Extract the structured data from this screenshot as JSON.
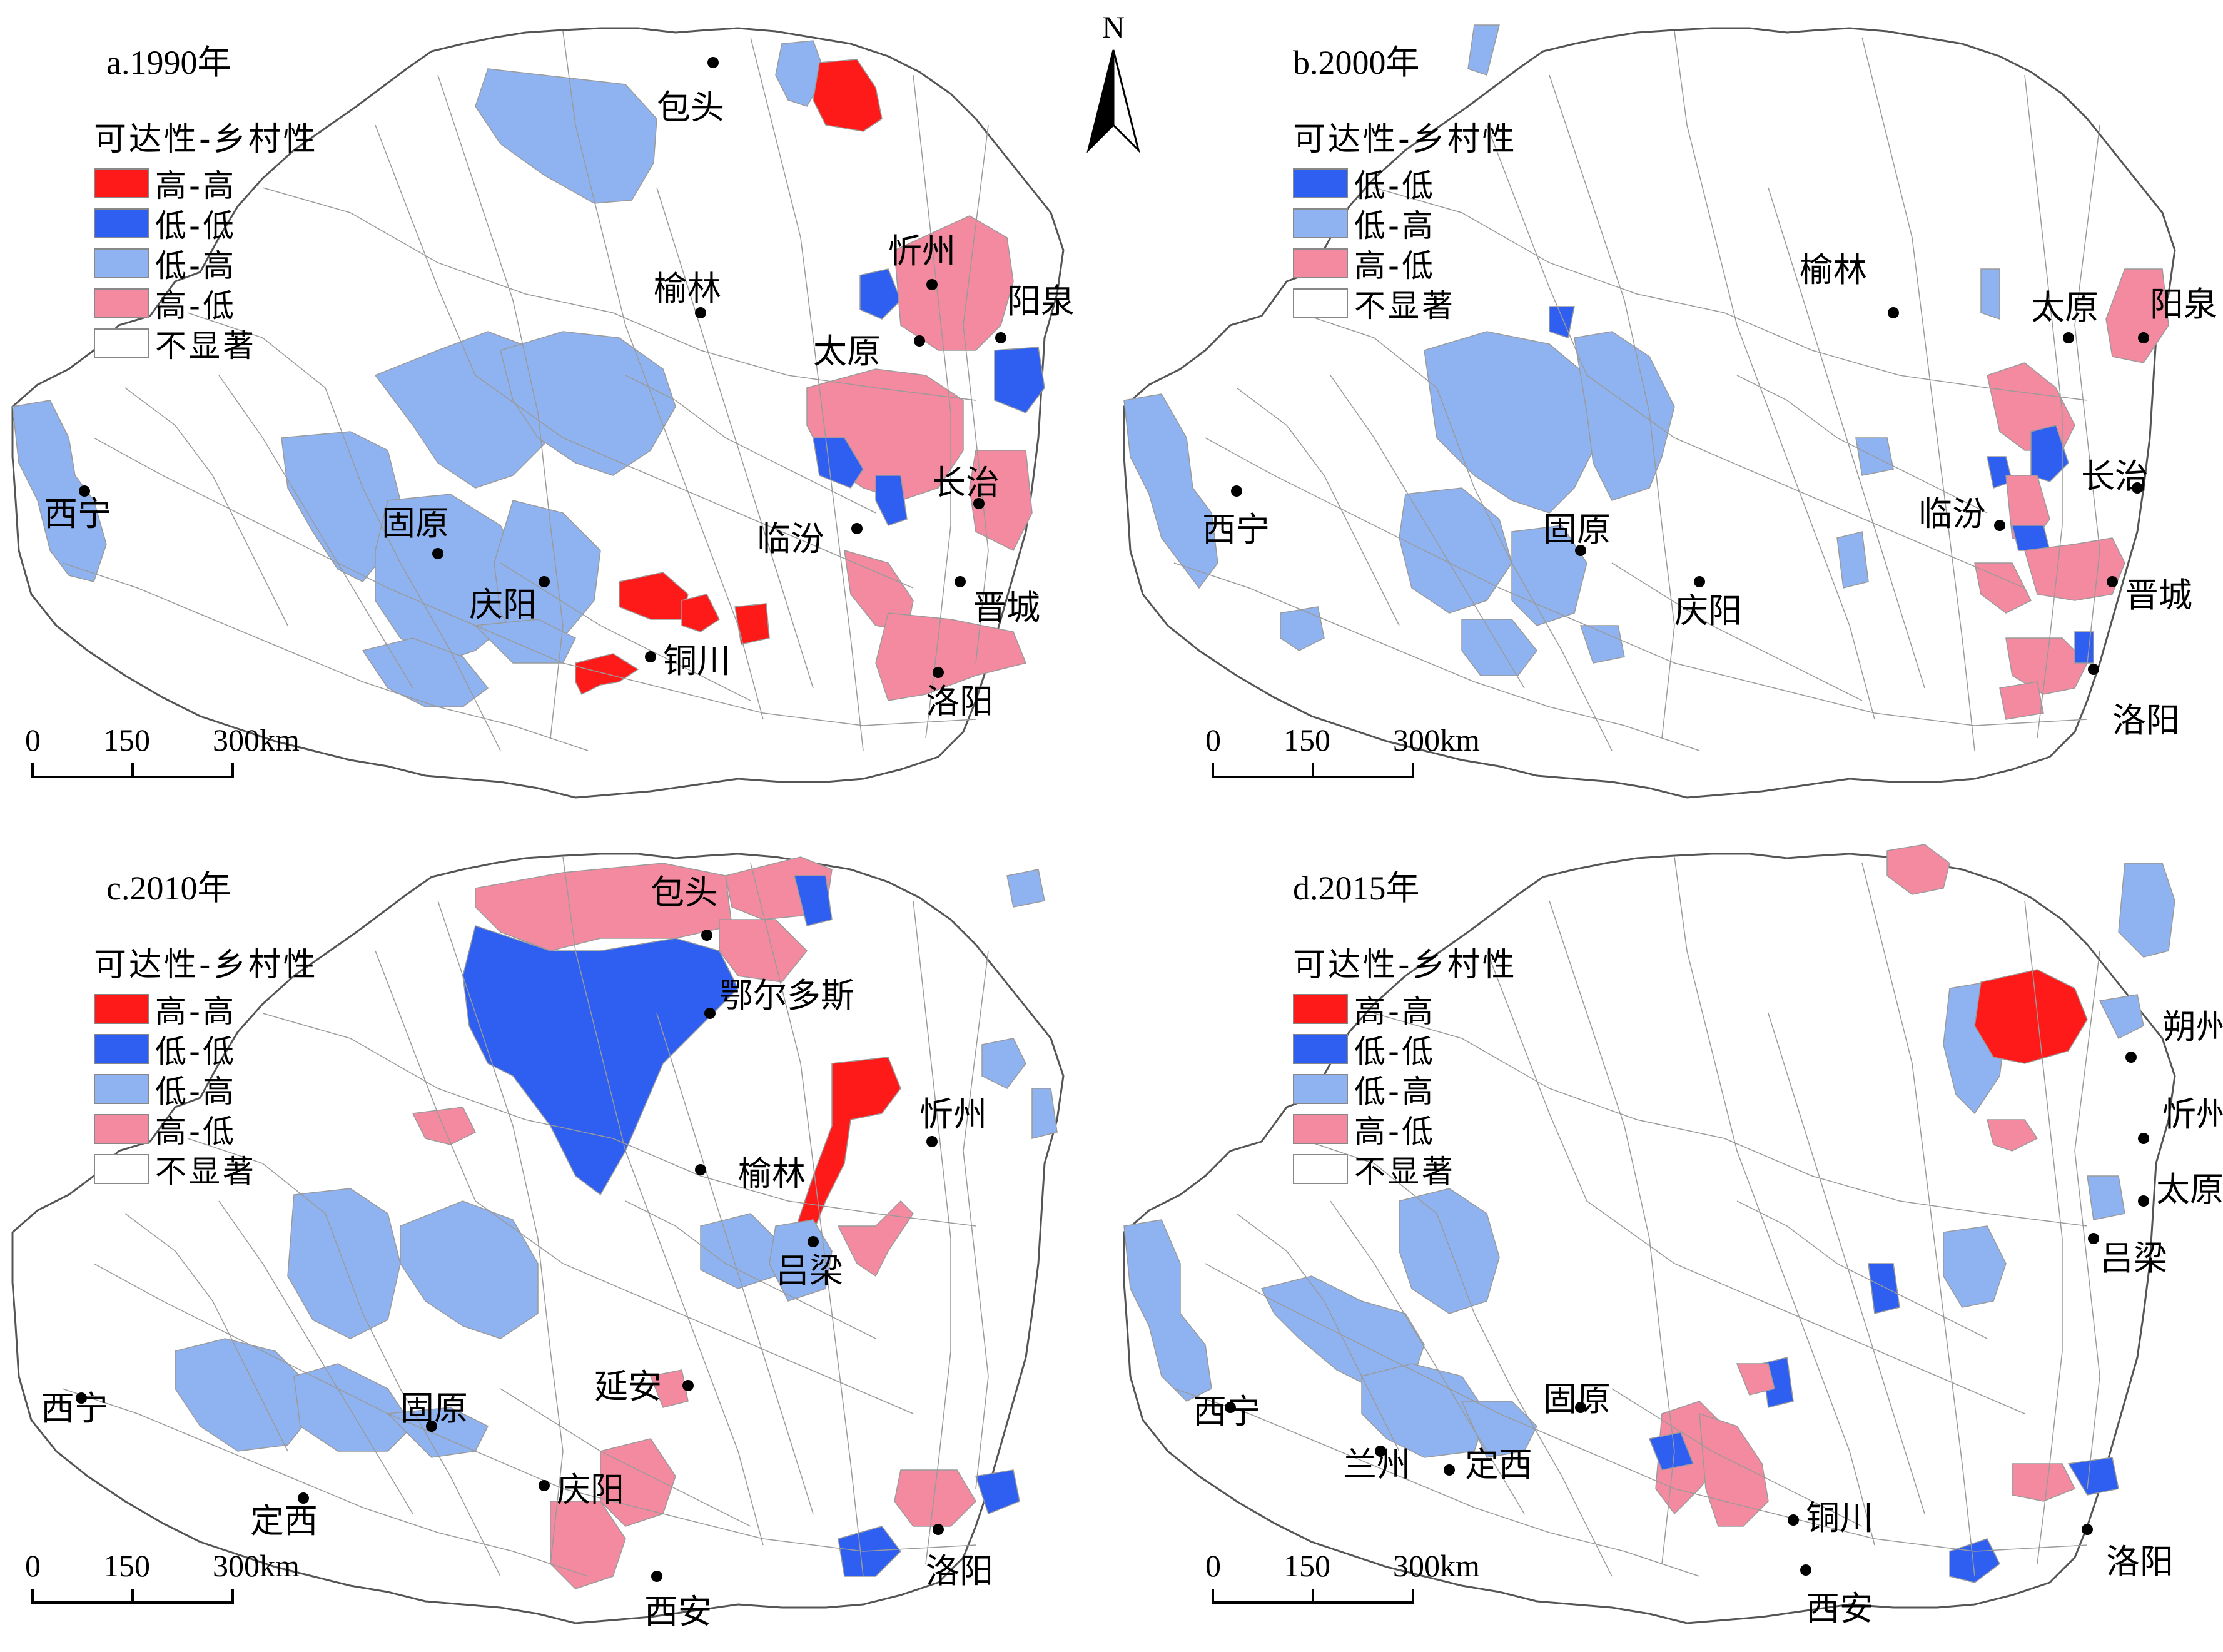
{
  "colors": {
    "high_high": "#ff1a1a",
    "low_low": "#2f5ff0",
    "low_high": "#8fb3f0",
    "high_low": "#f48aa0",
    "not_significant": "#ffffff",
    "boundary": "#9a9a9a",
    "outline": "#555555"
  },
  "north_arrow": {
    "label": "N"
  },
  "legend_labels": {
    "title": "可达性-乡村性",
    "high_high": "高-高",
    "low_low": "低-低",
    "low_high": "低-高",
    "high_low": "高-低",
    "not_significant": "不显著"
  },
  "panels": [
    {
      "title": "a.1990年",
      "legend": [
        "high_high",
        "low_low",
        "low_high",
        "high_low",
        "not_significant"
      ],
      "scale": [
        "0",
        "150",
        "300km"
      ],
      "cities": [
        "包头",
        "忻州",
        "阳泉",
        "榆林",
        "太原",
        "长治",
        "西宁",
        "固原",
        "临汾",
        "庆阳",
        "晋城",
        "铜川",
        "洛阳"
      ]
    },
    {
      "title": "b.2000年",
      "legend": [
        "low_low",
        "low_high",
        "high_low",
        "not_significant"
      ],
      "scale": [
        "0",
        "150",
        "300km"
      ],
      "cities": [
        "榆林",
        "太原",
        "阳泉",
        "长治",
        "西宁",
        "固原",
        "临汾",
        "庆阳",
        "晋城",
        "洛阳"
      ]
    },
    {
      "title": "c.2010年",
      "legend": [
        "high_high",
        "low_low",
        "low_high",
        "high_low",
        "not_significant"
      ],
      "scale": [
        "0",
        "150",
        "300km"
      ],
      "cities": [
        "包头",
        "鄂尔多斯",
        "忻州",
        "榆林",
        "吕梁",
        "西宁",
        "延安",
        "固原",
        "庆阳",
        "定西",
        "洛阳",
        "西安"
      ]
    },
    {
      "title": "d.2015年",
      "legend": [
        "high_high",
        "low_low",
        "low_high",
        "high_low",
        "not_significant"
      ],
      "scale": [
        "0",
        "150",
        "300km"
      ],
      "cities": [
        "朔州",
        "忻州",
        "太原",
        "吕梁",
        "西宁",
        "固原",
        "兰州",
        "定西",
        "铜川",
        "洛阳",
        "西安"
      ]
    }
  ]
}
